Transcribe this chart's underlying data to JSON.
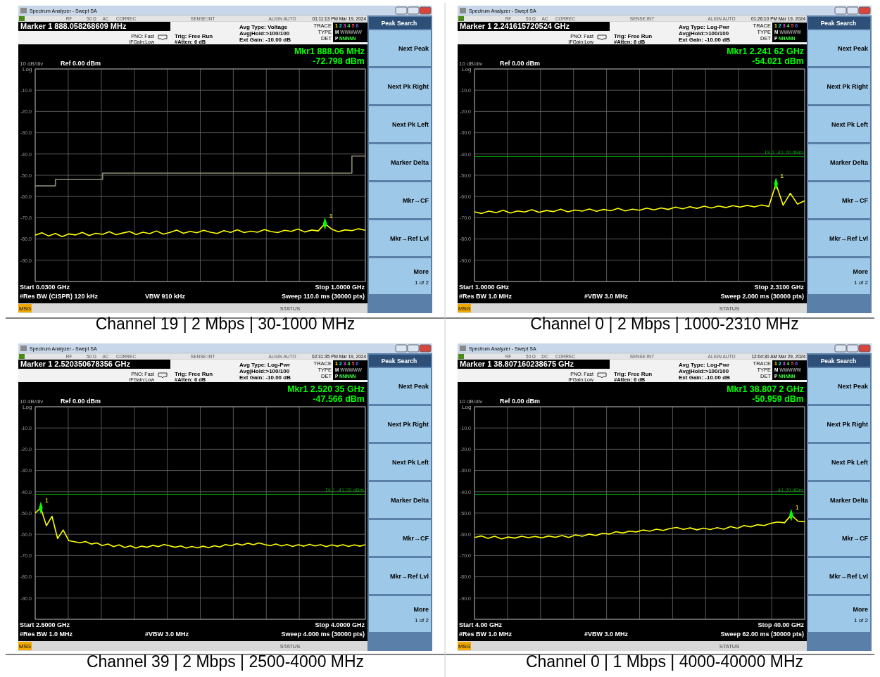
{
  "chart_data": [
    {
      "type": "line",
      "title": "Channel 19 | 2 Mbps | 30-1000 MHz",
      "categories": [
        null,
        null,
        null,
        null,
        null,
        null,
        null,
        null,
        null,
        null,
        null,
        null,
        null,
        null,
        null,
        null,
        null,
        null,
        null,
        null,
        null,
        null,
        null,
        null,
        null,
        null,
        null,
        null,
        null,
        null,
        null,
        null,
        null,
        null,
        null,
        null,
        null,
        null,
        null,
        null,
        null,
        null,
        null,
        null,
        null,
        null,
        null,
        null,
        null,
        null
      ],
      "ylim": [
        -100,
        0
      ],
      "yticks": [
        {
          "value": 0,
          "label": null
        },
        {
          "value": -10,
          "label": "-10.0"
        },
        {
          "value": -20,
          "label": "-20.0"
        },
        {
          "value": -30,
          "label": "-30.0"
        },
        {
          "value": -40,
          "label": "-40.0"
        },
        {
          "value": -50,
          "label": "-50.0"
        },
        {
          "value": -60,
          "label": "-60.0"
        },
        {
          "value": -70,
          "label": "-70.0"
        },
        {
          "value": -80,
          "label": "-80.0"
        },
        {
          "value": -90,
          "label": "-90.0"
        },
        {
          "value": -100,
          "label": null
        }
      ],
      "grid": true,
      "tick_labels": "y",
      "series": [
        {
          "type": "step",
          "color": "#8c8c78",
          "values": [
            -55,
            -55,
            -55,
            -52,
            -52,
            -52,
            -52,
            -52,
            -52,
            -52,
            -49,
            -49,
            -49,
            -49,
            -49,
            -49,
            -49,
            -49,
            -49,
            -49,
            -49,
            -49,
            -49,
            -49,
            -49,
            -49,
            -49,
            -49,
            -49,
            -49,
            -49,
            -49,
            -49,
            -49,
            -49,
            -49,
            -49,
            -49,
            -49,
            -49,
            -49,
            -49,
            -49,
            -49,
            -49,
            -49,
            -49,
            -41,
            -41,
            -41
          ]
        },
        {
          "color": "#ffff00",
          "values": [
            -78.2,
            -77.1,
            -78.6,
            -77.4,
            -78.9,
            -77.6,
            -78.1,
            -76.9,
            -78.4,
            -77.3,
            -77.8,
            -76.6,
            -78.0,
            -77.2,
            -76.5,
            -77.9,
            -76.8,
            -77.5,
            -76.2,
            -77.7,
            -76.9,
            -75.8,
            -77.3,
            -76.4,
            -77.1,
            -75.9,
            -76.8,
            -77.4,
            -76.1,
            -76.9,
            -75.7,
            -77.0,
            -76.3,
            -76.8,
            -75.6,
            -76.5,
            -77.0,
            -75.9,
            -76.4,
            -75.3,
            -76.7,
            -75.8,
            -76.2,
            -72.798,
            -75.4,
            -76.6,
            -75.7,
            -76.1,
            -75.2,
            -75.9
          ]
        },
        {
          "type": "scatter",
          "color": "#00ff00",
          "marker": "diamond",
          "values": [
            null,
            null,
            null,
            null,
            null,
            null,
            null,
            null,
            null,
            null,
            null,
            null,
            null,
            null,
            null,
            null,
            null,
            null,
            null,
            null,
            null,
            null,
            null,
            null,
            null,
            null,
            null,
            null,
            null,
            null,
            null,
            null,
            null,
            null,
            null,
            null,
            null,
            null,
            null,
            null,
            null,
            null,
            null,
            -72.798,
            null,
            null,
            null,
            null,
            null,
            null
          ]
        }
      ],
      "annotations": [
        "Spectrum Analyzer - Swept SA",
        "RF",
        "50 Ω",
        "AC",
        "CORREC",
        "SENSE:INT",
        "ALIGN AUTO",
        "01:11:13 PM Mar 19, 2024",
        "Marker 1 888.058268609 MHz",
        "PNO: Fast",
        "IFGain:Low",
        "Trig: Free Run",
        "#Atten: 6 dB",
        "Avg Type: Voltage",
        "Avg|Hold:>100/100",
        "Ext Gain: -10.00 dB",
        "TRACE",
        "TYPE",
        "DET",
        "1 2 3 4 5 6",
        "M WWWWW",
        "P NNNNN",
        "Mkr1 888.06 MHz",
        "-72.798 dBm",
        "10 dB/div",
        "Ref 0.00 dBm",
        "Log",
        "Start 0.0300 GHz",
        "Stop 1.0000 GHz",
        "#Res BW (CISPR)  120 kHz",
        "VBW 910 kHz",
        "Sweep  110.0 ms (30000 pts)",
        "MSG",
        "STATUS",
        "Peak Search",
        "Next Peak",
        "Next Pk Right",
        "Next Pk Left",
        "Marker Delta",
        "Mkr→CF",
        "Mkr→Ref Lvl",
        "More",
        "1 of 2",
        "1"
      ]
    },
    {
      "type": "line",
      "title": "Channel 0 | 2 Mbps | 1000-2310 MHz",
      "categories": [
        null,
        null,
        null,
        null,
        null,
        null,
        null,
        null,
        null,
        null,
        null,
        null,
        null,
        null,
        null,
        null,
        null,
        null,
        null,
        null,
        null,
        null,
        null,
        null,
        null,
        null,
        null,
        null,
        null,
        null,
        null,
        null,
        null,
        null,
        null,
        null,
        null,
        null,
        null,
        null,
        null,
        null,
        null,
        null,
        null,
        null,
        null
      ],
      "ylim": [
        -100,
        0
      ],
      "yticks": [
        {
          "value": 0,
          "label": null
        },
        {
          "value": -10,
          "label": "-10.0"
        },
        {
          "value": -20,
          "label": "-20.0"
        },
        {
          "value": -30,
          "label": "-30.0"
        },
        {
          "value": -40,
          "label": "-40.0"
        },
        {
          "value": -50,
          "label": "-50.0"
        },
        {
          "value": -60,
          "label": "-60.0"
        },
        {
          "value": -70,
          "label": "-70.0"
        },
        {
          "value": -80,
          "label": "-80.0"
        },
        {
          "value": -90,
          "label": "-90.0"
        },
        {
          "value": -100,
          "label": null
        }
      ],
      "grid": true,
      "tick_labels": "y",
      "ref_lines": [
        {
          "axis": "y",
          "value": -41.2,
          "label": "DL1 -41.20 dBm",
          "color": "#00a000"
        }
      ],
      "series": [
        {
          "color": "#ffff00",
          "values": [
            -67.2,
            -68.0,
            -66.9,
            -67.6,
            -66.5,
            -67.8,
            -66.8,
            -67.3,
            -66.2,
            -67.5,
            -66.6,
            -67.1,
            -66.0,
            -67.2,
            -66.4,
            -66.9,
            -65.9,
            -67.0,
            -66.1,
            -66.7,
            -65.6,
            -66.8,
            -66.0,
            -66.5,
            -65.5,
            -66.3,
            -65.4,
            -66.1,
            -65.0,
            -65.8,
            -64.8,
            -65.6,
            -64.6,
            -65.4,
            -64.5,
            -65.2,
            -64.3,
            -65.0,
            -64.2,
            -64.9,
            -64.0,
            -64.7,
            -54.021,
            -64.1,
            -58.5,
            -63.6,
            -62.0
          ]
        },
        {
          "type": "scatter",
          "color": "#00ff00",
          "marker": "diamond",
          "values": [
            null,
            null,
            null,
            null,
            null,
            null,
            null,
            null,
            null,
            null,
            null,
            null,
            null,
            null,
            null,
            null,
            null,
            null,
            null,
            null,
            null,
            null,
            null,
            null,
            null,
            null,
            null,
            null,
            null,
            null,
            null,
            null,
            null,
            null,
            null,
            null,
            null,
            null,
            null,
            null,
            null,
            null,
            -54.021,
            null,
            null,
            null,
            null
          ]
        }
      ],
      "annotations": [
        "Spectrum Analyzer - Swept SA",
        "RF",
        "50 Ω",
        "AC",
        "CORREC",
        "SENSE:INT",
        "ALIGN AUTO",
        "01:26:10 PM Mar 19, 2024",
        "Marker 1 2.241615720524 GHz",
        "PNO: Fast",
        "IFGain:Low",
        "Trig: Free Run",
        "#Atten: 6 dB",
        "Avg Type: Log-Pwr",
        "Avg|Hold:>100/100",
        "Ext Gain: -10.00 dB",
        "TRACE",
        "TYPE",
        "DET",
        "1 2 3 4 5 6",
        "M WWWWW",
        "P NNNNN",
        "Mkr1 2.241 62 GHz",
        "-54.021 dBm",
        "10 dB/div",
        "Ref 0.00 dBm",
        "Log",
        "Start 1.0000 GHz",
        "Stop 2.3100 GHz",
        "#Res BW 1.0 MHz",
        "#VBW 3.0 MHz",
        "Sweep  2.000 ms (30000 pts)",
        "MSG",
        "STATUS",
        "Peak Search",
        "Next Peak",
        "Next Pk Right",
        "Next Pk Left",
        "Marker Delta",
        "Mkr→CF",
        "Mkr→Ref Lvl",
        "More",
        "1 of 2",
        "1"
      ]
    },
    {
      "type": "line",
      "title": "Channel 39 | 2 Mbps | 2500-4000 MHz",
      "categories": [
        null,
        null,
        null,
        null,
        null,
        null,
        null,
        null,
        null,
        null,
        null,
        null,
        null,
        null,
        null,
        null,
        null,
        null,
        null,
        null,
        null,
        null,
        null,
        null,
        null,
        null,
        null,
        null,
        null,
        null,
        null,
        null,
        null,
        null,
        null,
        null,
        null,
        null,
        null,
        null,
        null,
        null,
        null,
        null,
        null,
        null,
        null,
        null,
        null,
        null,
        null,
        null,
        null,
        null,
        null,
        null,
        null,
        null,
        null,
        null
      ],
      "ylim": [
        -100,
        0
      ],
      "yticks": [
        {
          "value": 0,
          "label": null
        },
        {
          "value": -10,
          "label": "-10.0"
        },
        {
          "value": -20,
          "label": "-20.0"
        },
        {
          "value": -30,
          "label": "-30.0"
        },
        {
          "value": -40,
          "label": "-40.0"
        },
        {
          "value": -50,
          "label": "-50.0"
        },
        {
          "value": -60,
          "label": "-60.0"
        },
        {
          "value": -70,
          "label": "-70.0"
        },
        {
          "value": -80,
          "label": "-80.0"
        },
        {
          "value": -90,
          "label": "-90.0"
        },
        {
          "value": -100,
          "label": null
        }
      ],
      "grid": true,
      "tick_labels": "y",
      "ref_lines": [
        {
          "axis": "y",
          "value": -41.2,
          "label": "DL1 -41.20 dBm",
          "color": "#00a000"
        }
      ],
      "series": [
        {
          "color": "#ffff00",
          "values": [
            -50.0,
            -47.566,
            -56.0,
            -51.5,
            -62.0,
            -58.0,
            -63.0,
            -63.5,
            -64.0,
            -63.4,
            -64.6,
            -64.1,
            -65.3,
            -64.6,
            -65.8,
            -65.0,
            -66.2,
            -65.4,
            -66.5,
            -65.6,
            -66.1,
            -65.2,
            -65.8,
            -64.8,
            -65.4,
            -66.1,
            -65.5,
            -66.5,
            -65.7,
            -66.4,
            -65.6,
            -66.3,
            -65.4,
            -66.0,
            -64.8,
            -65.4,
            -64.4,
            -65.1,
            -64.2,
            -64.9,
            -64.1,
            -64.8,
            -65.4,
            -64.6,
            -65.5,
            -64.8,
            -65.7,
            -64.9,
            -65.6,
            -64.7,
            -65.5,
            -64.9,
            -65.8,
            -65.0,
            -65.6,
            -64.9,
            -65.7,
            -65.0,
            -65.6,
            -64.9
          ]
        },
        {
          "type": "scatter",
          "color": "#00ff00",
          "marker": "diamond",
          "values": [
            null,
            -47.566,
            null,
            null,
            null,
            null,
            null,
            null,
            null,
            null,
            null,
            null,
            null,
            null,
            null,
            null,
            null,
            null,
            null,
            null,
            null,
            null,
            null,
            null,
            null,
            null,
            null,
            null,
            null,
            null,
            null,
            null,
            null,
            null,
            null,
            null,
            null,
            null,
            null,
            null,
            null,
            null,
            null,
            null,
            null,
            null,
            null,
            null,
            null,
            null,
            null,
            null,
            null,
            null,
            null,
            null,
            null,
            null,
            null,
            null
          ]
        }
      ],
      "annotations": [
        "Spectrum Analyzer - Swept SA",
        "RF",
        "50 Ω",
        "AC",
        "CORREC",
        "SENSE:INT",
        "ALIGN AUTO",
        "02:31:35 PM Mar 19, 2024",
        "Marker 1 2.520350678356 GHz",
        "PNO: Fast",
        "IFGain:Low",
        "Trig: Free Run",
        "#Atten: 6 dB",
        "Avg Type: Log-Pwr",
        "Avg|Hold:>100/100",
        "Ext Gain: -10.00 dB",
        "TRACE",
        "TYPE",
        "DET",
        "1 2 3 4 5 6",
        "M WWWWW",
        "P NNNNN",
        "Mkr1 2.520 35 GHz",
        "-47.566 dBm",
        "10 dB/div",
        "Ref 0.00 dBm",
        "Log",
        "Start 2.5000 GHz",
        "Stop 4.0000 GHz",
        "#Res BW 1.0 MHz",
        "#VBW 3.0 MHz",
        "Sweep  4.000 ms (30000 pts)",
        "MSG",
        "STATUS",
        "Peak Search",
        "Next Peak",
        "Next Pk Right",
        "Next Pk Left",
        "Marker Delta",
        "Mkr→CF",
        "Mkr→Ref Lvl",
        "More",
        "1 of 2",
        "1"
      ]
    },
    {
      "type": "line",
      "title": "Channel 0 | 1 Mbps | 4000-40000 MHz",
      "categories": [
        null,
        null,
        null,
        null,
        null,
        null,
        null,
        null,
        null,
        null,
        null,
        null,
        null,
        null,
        null,
        null,
        null,
        null,
        null,
        null,
        null,
        null,
        null,
        null,
        null,
        null,
        null,
        null,
        null,
        null,
        null,
        null,
        null,
        null,
        null,
        null,
        null,
        null,
        null,
        null,
        null,
        null,
        null,
        null,
        null,
        null,
        null,
        null,
        null,
        null
      ],
      "ylim": [
        -100,
        0
      ],
      "yticks": [
        {
          "value": 0,
          "label": null
        },
        {
          "value": -10,
          "label": "-10.0"
        },
        {
          "value": -20,
          "label": "-20.0"
        },
        {
          "value": -30,
          "label": "-30.0"
        },
        {
          "value": -40,
          "label": "-40.0"
        },
        {
          "value": -50,
          "label": "-50.0"
        },
        {
          "value": -60,
          "label": "-60.0"
        },
        {
          "value": -70,
          "label": "-70.0"
        },
        {
          "value": -80,
          "label": "-80.0"
        },
        {
          "value": -90,
          "label": "-90.0"
        },
        {
          "value": -100,
          "label": null
        }
      ],
      "grid": true,
      "tick_labels": "y",
      "ref_lines": [
        {
          "axis": "y",
          "value": -41.2,
          "label": "-41.20 dBm",
          "color": "#00a000"
        }
      ],
      "series": [
        {
          "color": "#ffff00",
          "values": [
            -61.5,
            -60.8,
            -61.9,
            -60.9,
            -62.2,
            -61.3,
            -61.8,
            -60.9,
            -61.6,
            -61.0,
            -61.7,
            -60.8,
            -61.4,
            -60.6,
            -61.5,
            -60.3,
            -60.9,
            -59.9,
            -60.6,
            -59.5,
            -59.9,
            -58.8,
            -59.4,
            -58.5,
            -58.9,
            -58.0,
            -58.5,
            -57.6,
            -58.2,
            -57.3,
            -56.8,
            -57.7,
            -57.0,
            -57.9,
            -57.1,
            -57.8,
            -56.9,
            -57.6,
            -56.4,
            -57.2,
            -55.9,
            -56.5,
            -55.5,
            -55.9,
            -54.8,
            -54.2,
            -54.6,
            -50.959,
            -53.8,
            -54.1
          ]
        },
        {
          "type": "scatter",
          "color": "#00ff00",
          "marker": "diamond",
          "values": [
            null,
            null,
            null,
            null,
            null,
            null,
            null,
            null,
            null,
            null,
            null,
            null,
            null,
            null,
            null,
            null,
            null,
            null,
            null,
            null,
            null,
            null,
            null,
            null,
            null,
            null,
            null,
            null,
            null,
            null,
            null,
            null,
            null,
            null,
            null,
            null,
            null,
            null,
            null,
            null,
            null,
            null,
            null,
            null,
            null,
            null,
            null,
            -50.959,
            null,
            null
          ]
        }
      ],
      "annotations": [
        "Spectrum Analyzer - Swept SA",
        "RF",
        "50 Ω",
        "DC",
        "CORREC",
        "SENSE:INT",
        "ALIGN AUTO",
        "12:04:30 AM Mar 29, 2024",
        "Marker 1 38.807160238675 GHz",
        "PNO: Fast",
        "IFGain:Low",
        "Trig: Free Run",
        "#Atten: 6 dB",
        "Avg Type: Log-Pwr",
        "Avg|Hold:>100/100",
        "Ext Gain: -10.00 dB",
        "TRACE",
        "TYPE",
        "DET",
        "1 2 3 4 5 6",
        "M WWWWW",
        "P NNNNN",
        "Mkr1 38.807 2 GHz",
        "-50.959 dBm",
        "10 dB/div",
        "Ref 0.00 dBm",
        "Log",
        "Start 4.00 GHz",
        "Stop 40.00 GHz",
        "#Res BW 1.0 MHz",
        "#VBW 3.0 MHz",
        "Sweep  62.00 ms (30000 pts)",
        "MSG",
        "STATUS",
        "Peak Search",
        "Next Peak",
        "Next Pk Right",
        "Next Pk Left",
        "Marker Delta",
        "Mkr→CF",
        "Mkr→Ref Lvl",
        "More",
        "1 of 2",
        "1"
      ]
    }
  ]
}
